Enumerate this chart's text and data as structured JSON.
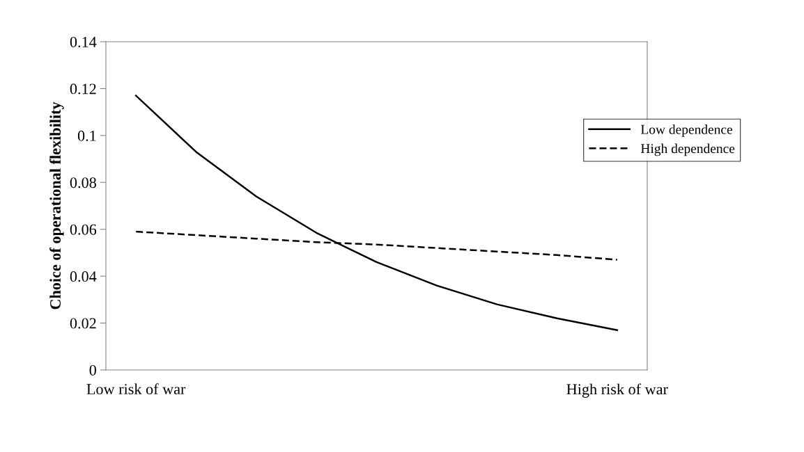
{
  "chart_data": {
    "type": "line",
    "ylabel": "Choice of operational flexibility",
    "categories": [
      "Low risk of war",
      null,
      null,
      null,
      null,
      null,
      null,
      null,
      "High risk of war"
    ],
    "series": [
      {
        "name": "Low dependence",
        "color": "#000000",
        "line_style": "solid",
        "values": [
          0.117,
          0.093,
          0.074,
          0.0585,
          0.046,
          0.036,
          0.028,
          0.022,
          0.017
        ]
      },
      {
        "name": "High dependence",
        "color": "#000000",
        "line_style": "dashed",
        "values": [
          0.059,
          0.0575,
          0.056,
          0.0545,
          0.0535,
          0.052,
          0.0505,
          0.049,
          0.047
        ]
      }
    ],
    "ylim": [
      0,
      0.14
    ],
    "yticks": [
      0,
      0.02,
      0.04,
      0.06,
      0.08,
      {
        "value": 0.1,
        "label": "0.1"
      },
      0.12,
      0.14
    ],
    "grid": false,
    "legend": "right",
    "marker": "none"
  }
}
